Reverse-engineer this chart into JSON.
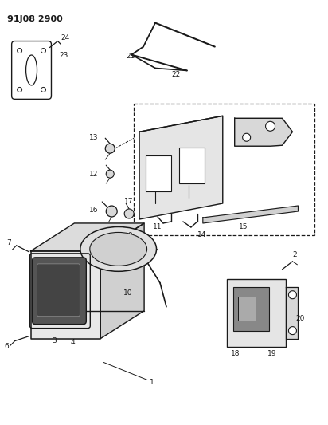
{
  "title": "91J08 2900",
  "bg_color": "#ffffff",
  "line_color": "#1a1a1a",
  "fig_width": 4.12,
  "fig_height": 5.33,
  "dpi": 100
}
